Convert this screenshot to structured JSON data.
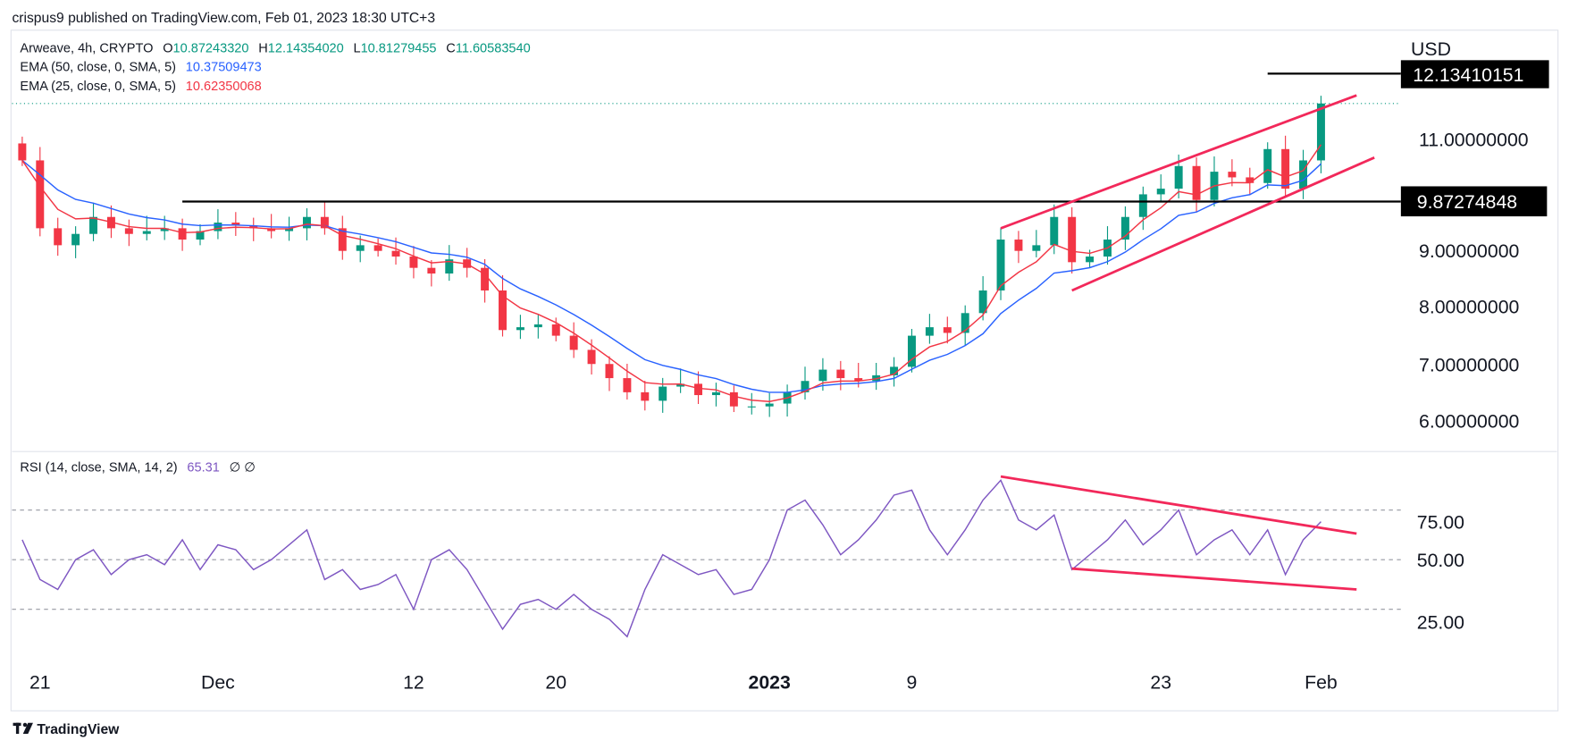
{
  "header": {
    "published": "crispus9 published on TradingView.com, Feb 01, 2023 18:30 UTC+3"
  },
  "legend": {
    "symbol": "Arweave, 4h, CRYPTO",
    "open_label": "O",
    "open": "10.87243320",
    "high_label": "H",
    "high": "12.14354020",
    "low_label": "L",
    "low": "10.81279455",
    "close_label": "C",
    "close": "11.60583540",
    "ema50_label": "EMA (50, close, 0, SMA, 5)",
    "ema50_value": "10.37509473",
    "ema25_label": "EMA (25, close, 0, SMA, 5)",
    "ema25_value": "10.62350068",
    "rsi_label": "RSI (14, close, SMA, 14, 2)",
    "rsi_value": "65.31",
    "rsi_extra": "∅  ∅"
  },
  "price_axis": {
    "currency": "USD",
    "ticks": [
      "11.00000000",
      "9.00000000",
      "8.00000000",
      "7.00000000",
      "6.00000000"
    ],
    "high_label": "12.13410151",
    "level_label": "9.87274848"
  },
  "rsi_axis": {
    "ticks": [
      "75.00",
      "50.00",
      "25.00"
    ]
  },
  "time_axis": {
    "ticks": [
      "21",
      "Dec",
      "12",
      "20",
      "2023",
      "9",
      "23",
      "Feb"
    ]
  },
  "footer": {
    "brand": "TradingView",
    "logo_icon": "tradingview-logo-icon"
  },
  "colors": {
    "up": "#089981",
    "down": "#f23645",
    "ema50": "#2962ff",
    "ema25": "#f23645",
    "rsi": "#7e57c2",
    "trendline": "#f2285a",
    "level": "#000000"
  },
  "chart_data": [
    {
      "type": "candlestick",
      "title": "Arweave, 4h, CRYPTO",
      "ylabel": "USD",
      "ylim": [
        5.5,
        12.5
      ],
      "grid": false,
      "x_ticks": [
        [
          "2022-11-21",
          "21"
        ],
        [
          "2022-12-01",
          "Dec"
        ],
        [
          "2022-12-12",
          "12"
        ],
        [
          "2022-12-20",
          "20"
        ],
        [
          "2023-01-01",
          "2023"
        ],
        [
          "2023-01-09",
          "9"
        ],
        [
          "2023-01-23",
          "23"
        ],
        [
          "2023-02-01",
          "Feb"
        ]
      ],
      "closes": [
        [
          "2022-11-20",
          10.6
        ],
        [
          "2022-11-21",
          9.4
        ],
        [
          "2022-11-22",
          9.1
        ],
        [
          "2022-11-23",
          9.3
        ],
        [
          "2022-11-24",
          9.6
        ],
        [
          "2022-11-25",
          9.4
        ],
        [
          "2022-11-26",
          9.3
        ],
        [
          "2022-11-27",
          9.35
        ],
        [
          "2022-11-28",
          9.4
        ],
        [
          "2022-11-29",
          9.2
        ],
        [
          "2022-11-30",
          9.35
        ],
        [
          "2022-12-01",
          9.5
        ],
        [
          "2022-12-02",
          9.45
        ],
        [
          "2022-12-03",
          9.4
        ],
        [
          "2022-12-04",
          9.35
        ],
        [
          "2022-12-05",
          9.4
        ],
        [
          "2022-12-06",
          9.6
        ],
        [
          "2022-12-07",
          9.4
        ],
        [
          "2022-12-08",
          9.0
        ],
        [
          "2022-12-09",
          9.1
        ],
        [
          "2022-12-10",
          9.0
        ],
        [
          "2022-12-11",
          8.9
        ],
        [
          "2022-12-12",
          8.7
        ],
        [
          "2022-12-13",
          8.6
        ],
        [
          "2022-12-14",
          8.85
        ],
        [
          "2022-12-15",
          8.7
        ],
        [
          "2022-12-16",
          8.3
        ],
        [
          "2022-12-17",
          7.6
        ],
        [
          "2022-12-18",
          7.65
        ],
        [
          "2022-12-19",
          7.7
        ],
        [
          "2022-12-20",
          7.5
        ],
        [
          "2022-12-21",
          7.25
        ],
        [
          "2022-12-22",
          7.0
        ],
        [
          "2022-12-23",
          6.75
        ],
        [
          "2022-12-24",
          6.5
        ],
        [
          "2022-12-25",
          6.35
        ],
        [
          "2022-12-26",
          6.6
        ],
        [
          "2022-12-27",
          6.65
        ],
        [
          "2022-12-28",
          6.45
        ],
        [
          "2022-12-29",
          6.5
        ],
        [
          "2022-12-30",
          6.25
        ],
        [
          "2022-12-31",
          6.25
        ],
        [
          "2023-01-01",
          6.3
        ],
        [
          "2023-01-02",
          6.5
        ],
        [
          "2023-01-03",
          6.7
        ],
        [
          "2023-01-04",
          6.9
        ],
        [
          "2023-01-05",
          6.75
        ],
        [
          "2023-01-06",
          6.7
        ],
        [
          "2023-01-07",
          6.8
        ],
        [
          "2023-01-08",
          6.95
        ],
        [
          "2023-01-09",
          7.5
        ],
        [
          "2023-01-10",
          7.65
        ],
        [
          "2023-01-11",
          7.55
        ],
        [
          "2023-01-12",
          7.9
        ],
        [
          "2023-01-13",
          8.3
        ],
        [
          "2023-01-14",
          9.2
        ],
        [
          "2023-01-15",
          9.0
        ],
        [
          "2023-01-16",
          9.1
        ],
        [
          "2023-01-17",
          9.6
        ],
        [
          "2023-01-18",
          8.8
        ],
        [
          "2023-01-19",
          8.9
        ],
        [
          "2023-01-20",
          9.2
        ],
        [
          "2023-01-21",
          9.6
        ],
        [
          "2023-01-22",
          10.0
        ],
        [
          "2023-01-23",
          10.1
        ],
        [
          "2023-01-24",
          10.5
        ],
        [
          "2023-01-25",
          9.9
        ],
        [
          "2023-01-26",
          10.4
        ],
        [
          "2023-01-27",
          10.3
        ],
        [
          "2023-01-28",
          10.2
        ],
        [
          "2023-01-29",
          10.8
        ],
        [
          "2023-01-30",
          10.1
        ],
        [
          "2023-01-31",
          10.6
        ],
        [
          "2023-02-01",
          11.6058
        ]
      ],
      "series": [
        {
          "name": "EMA (50, close, 0, SMA, 5)",
          "last": 10.37509473
        },
        {
          "name": "EMA (25, close, 0, SMA, 5)",
          "last": 10.62350068
        }
      ],
      "horizontal_levels": [
        {
          "value": 9.87274848,
          "from": "2022-11-29"
        },
        {
          "value": 12.13410151,
          "from": "2023-01-29"
        }
      ],
      "trendlines": [
        {
          "name": "channel-upper",
          "from": [
            "2023-01-14",
            9.4
          ],
          "to": [
            "2023-02-03",
            11.75
          ]
        },
        {
          "name": "channel-lower",
          "from": [
            "2023-01-18",
            8.3
          ],
          "to": [
            "2023-02-04",
            10.65
          ]
        }
      ]
    },
    {
      "type": "line",
      "title": "RSI (14, close, SMA, 14, 2)",
      "ylim": [
        10,
        95
      ],
      "bands": [
        70,
        50,
        30
      ],
      "values": [
        58,
        42,
        38,
        50,
        54,
        44,
        50,
        52,
        48,
        58,
        46,
        56,
        54,
        46,
        50,
        56,
        62,
        42,
        46,
        38,
        40,
        44,
        30,
        50,
        54,
        46,
        34,
        22,
        32,
        34,
        30,
        36,
        30,
        26,
        19,
        38,
        52,
        48,
        44,
        46,
        36,
        38,
        50,
        70,
        74,
        64,
        52,
        58,
        66,
        76,
        78,
        62,
        52,
        62,
        74,
        82,
        66,
        62,
        68,
        46,
        52,
        58,
        66,
        56,
        62,
        70,
        52,
        58,
        62,
        52,
        62,
        44,
        58,
        65.31
      ],
      "trendlines": [
        {
          "name": "rsi-upper",
          "from": [
            "2023-01-14",
            83.5
          ],
          "to": [
            "2023-02-03",
            60.5
          ]
        },
        {
          "name": "rsi-lower",
          "from": [
            "2023-01-18",
            46.4
          ],
          "to": [
            "2023-02-03",
            38
          ]
        }
      ]
    }
  ]
}
